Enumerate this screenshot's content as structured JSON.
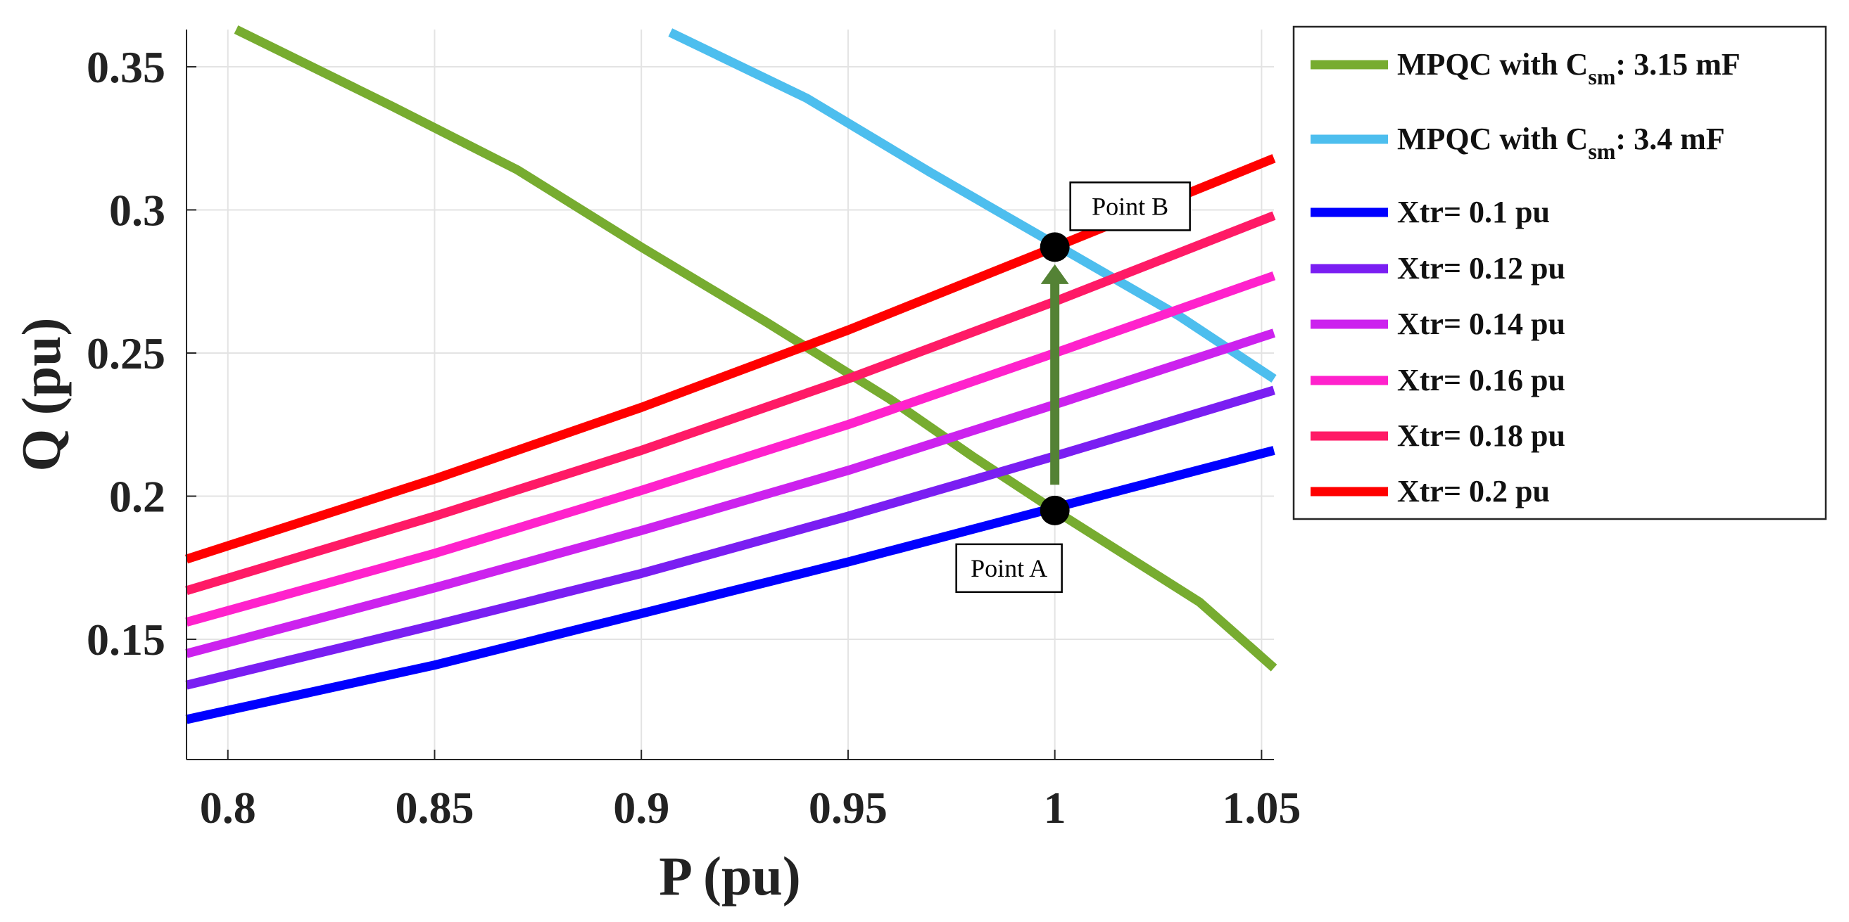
{
  "chart_data": {
    "type": "line",
    "title": "",
    "xlabel": "P (pu)",
    "ylabel": "Q (pu)",
    "xlim": [
      0.79,
      1.053
    ],
    "ylim": [
      0.108,
      0.363
    ],
    "grid": true,
    "xticks": [
      {
        "value": 0.8,
        "label": "0.8"
      },
      {
        "value": 0.85,
        "label": "0.85"
      },
      {
        "value": 0.9,
        "label": "0.9"
      },
      {
        "value": 0.95,
        "label": "0.95"
      },
      {
        "value": 1.0,
        "label": "1"
      },
      {
        "value": 1.05,
        "label": "1.05"
      }
    ],
    "yticks": [
      {
        "value": 0.15,
        "label": "0.15"
      },
      {
        "value": 0.2,
        "label": "0.2"
      },
      {
        "value": 0.25,
        "label": "0.25"
      },
      {
        "value": 0.3,
        "label": "0.3"
      },
      {
        "value": 0.35,
        "label": "0.35"
      }
    ],
    "legend_position": "outside-top-right",
    "series": [
      {
        "name": "MPQC with Csm: 3.15 mF",
        "legend_main": "MPQC with C",
        "legend_sub": "sm",
        "legend_tail": ": 3.15 mF",
        "color": "#77ac30",
        "points": [
          [
            0.802,
            0.363
          ],
          [
            0.84,
            0.336
          ],
          [
            0.87,
            0.314
          ],
          [
            0.9,
            0.287
          ],
          [
            0.93,
            0.261
          ],
          [
            0.96,
            0.234
          ],
          [
            0.98,
            0.214
          ],
          [
            1.0,
            0.195
          ],
          [
            1.035,
            0.163
          ],
          [
            1.053,
            0.14
          ]
        ]
      },
      {
        "name": "MPQC with Csm: 3.4 mF",
        "legend_main": "MPQC with C",
        "legend_sub": "sm",
        "legend_tail": ": 3.4 mF",
        "color": "#4dbeee",
        "points": [
          [
            0.907,
            0.362
          ],
          [
            0.94,
            0.339
          ],
          [
            0.97,
            0.313
          ],
          [
            1.0,
            0.288
          ],
          [
            1.03,
            0.263
          ],
          [
            1.053,
            0.241
          ]
        ]
      },
      {
        "name": "Xtr= 0.1 pu",
        "legend_main": "Xtr= 0.1 pu",
        "color": "#0000ff",
        "points": [
          [
            0.79,
            0.122
          ],
          [
            0.85,
            0.141
          ],
          [
            0.9,
            0.159
          ],
          [
            0.95,
            0.177
          ],
          [
            1.0,
            0.196
          ],
          [
            1.053,
            0.216
          ]
        ]
      },
      {
        "name": "Xtr= 0.12 pu",
        "legend_main": "Xtr= 0.12 pu",
        "color": "#7a1ef2",
        "points": [
          [
            0.79,
            0.134
          ],
          [
            0.85,
            0.155
          ],
          [
            0.9,
            0.173
          ],
          [
            0.95,
            0.193
          ],
          [
            1.0,
            0.214
          ],
          [
            1.053,
            0.237
          ]
        ]
      },
      {
        "name": "Xtr= 0.14 pu",
        "legend_main": "Xtr= 0.14 pu",
        "color": "#cc22ee",
        "points": [
          [
            0.79,
            0.145
          ],
          [
            0.85,
            0.168
          ],
          [
            0.9,
            0.188
          ],
          [
            0.95,
            0.209
          ],
          [
            1.0,
            0.232
          ],
          [
            1.053,
            0.257
          ]
        ]
      },
      {
        "name": "Xtr= 0.16 pu",
        "legend_main": "Xtr= 0.16 pu",
        "color": "#ff22cc",
        "points": [
          [
            0.79,
            0.156
          ],
          [
            0.85,
            0.18
          ],
          [
            0.9,
            0.202
          ],
          [
            0.95,
            0.225
          ],
          [
            1.0,
            0.25
          ],
          [
            1.053,
            0.277
          ]
        ]
      },
      {
        "name": "Xtr= 0.18 pu",
        "legend_main": "Xtr= 0.18 pu",
        "color": "#ff1a66",
        "points": [
          [
            0.79,
            0.167
          ],
          [
            0.85,
            0.193
          ],
          [
            0.9,
            0.216
          ],
          [
            0.95,
            0.241
          ],
          [
            1.0,
            0.268
          ],
          [
            1.053,
            0.298
          ]
        ]
      },
      {
        "name": "Xtr= 0.2 pu",
        "legend_main": "Xtr= 0.2 pu",
        "color": "#ff0000",
        "points": [
          [
            0.79,
            0.178
          ],
          [
            0.85,
            0.206
          ],
          [
            0.9,
            0.231
          ],
          [
            0.95,
            0.258
          ],
          [
            1.0,
            0.287
          ],
          [
            1.053,
            0.318
          ]
        ]
      }
    ],
    "annotations": [
      {
        "label": "Point A",
        "x": 1.0,
        "y": 0.195
      },
      {
        "label": "Point B",
        "x": 1.0,
        "y": 0.287
      }
    ],
    "arrow": {
      "color": "#548235",
      "from": [
        1.0,
        0.204
      ],
      "to": [
        1.0,
        0.28
      ]
    }
  }
}
